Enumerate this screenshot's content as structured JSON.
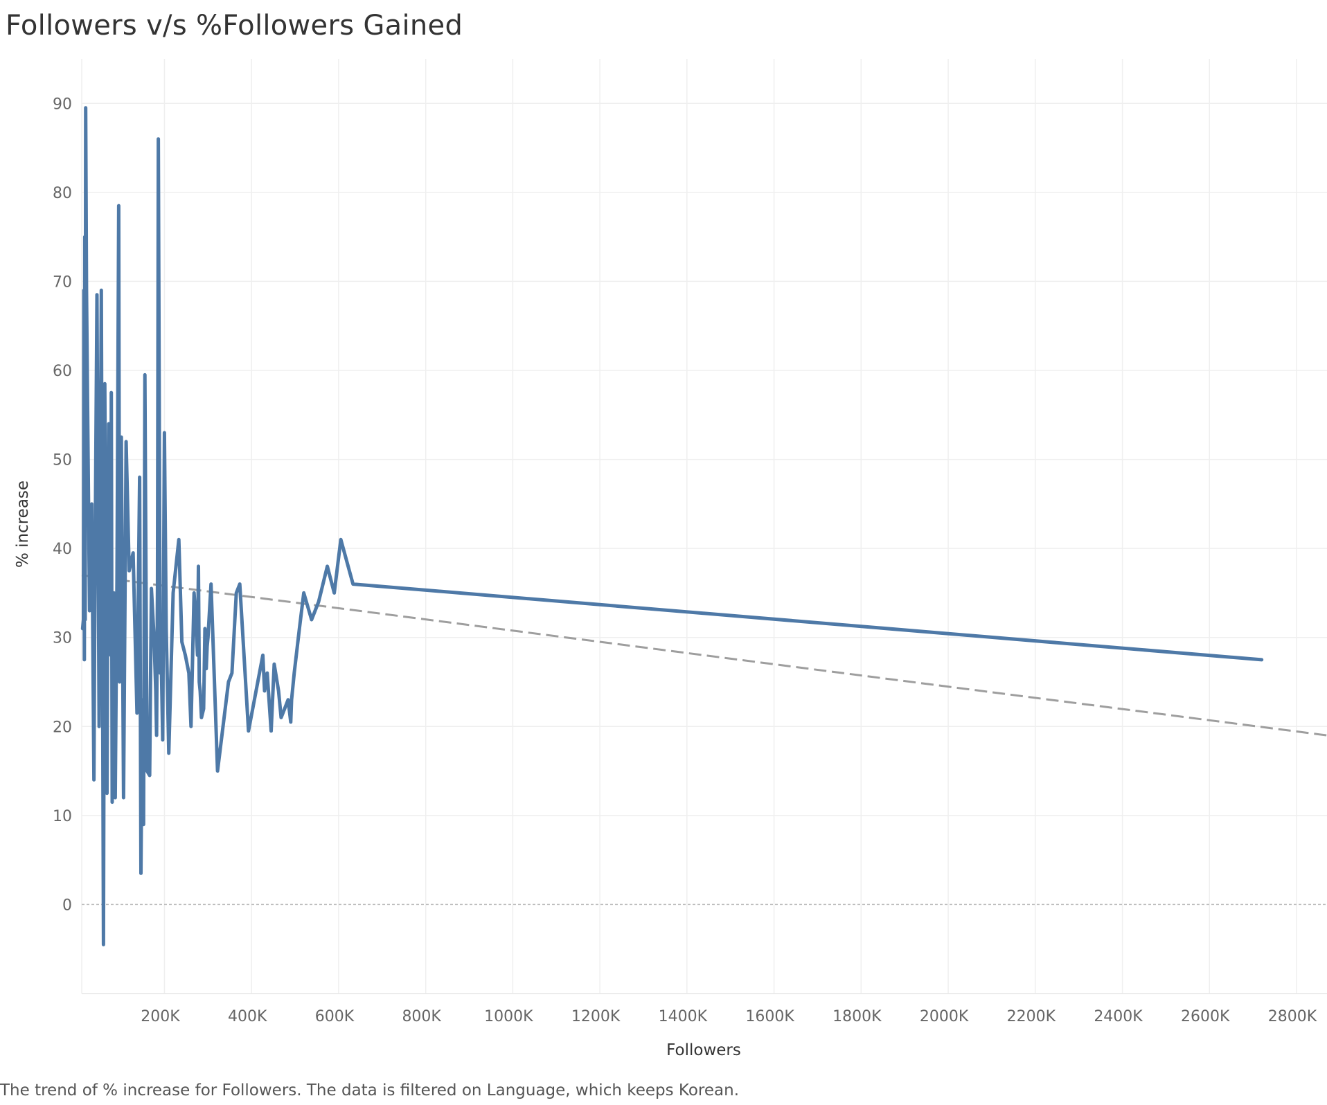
{
  "chart_data": {
    "type": "line",
    "title": "Followers v/s %Followers Gained",
    "caption": "The trend of % increase for Followers. The data is filtered on Language, which keeps Korean.",
    "xlabel": "Followers",
    "ylabel": "% increase",
    "xlim": [
      10000,
      2870000
    ],
    "ylim": [
      -10,
      95
    ],
    "x_ticks": [
      {
        "value": 200000,
        "label": "200K"
      },
      {
        "value": 400000,
        "label": "400K"
      },
      {
        "value": 600000,
        "label": "600K"
      },
      {
        "value": 800000,
        "label": "800K"
      },
      {
        "value": 1000000,
        "label": "1000K"
      },
      {
        "value": 1200000,
        "label": "1200K"
      },
      {
        "value": 1400000,
        "label": "1400K"
      },
      {
        "value": 1600000,
        "label": "1600K"
      },
      {
        "value": 1800000,
        "label": "1800K"
      },
      {
        "value": 2000000,
        "label": "2000K"
      },
      {
        "value": 2200000,
        "label": "2200K"
      },
      {
        "value": 2400000,
        "label": "2400K"
      },
      {
        "value": 2600000,
        "label": "2600K"
      },
      {
        "value": 2800000,
        "label": "2800K"
      }
    ],
    "y_ticks": [
      {
        "value": 0,
        "label": "0"
      },
      {
        "value": 10,
        "label": "10"
      },
      {
        "value": 20,
        "label": "20"
      },
      {
        "value": 30,
        "label": "30"
      },
      {
        "value": 40,
        "label": "40"
      },
      {
        "value": 50,
        "label": "50"
      },
      {
        "value": 60,
        "label": "60"
      },
      {
        "value": 70,
        "label": "70"
      },
      {
        "value": 80,
        "label": "80"
      },
      {
        "value": 90,
        "label": "90"
      }
    ],
    "grid": true,
    "colors": {
      "line": "#4e79a7",
      "trend": "#999999",
      "grid": "#efefef",
      "zero_line": "#bbbbbb"
    },
    "series": [
      {
        "x": [
          12000,
          14000,
          15000,
          16000,
          17000,
          18000,
          19000,
          21000,
          28000,
          33000,
          38000,
          40000,
          45000,
          50000,
          55000,
          60000,
          63000,
          68000,
          70000,
          72000,
          74000,
          75000,
          77000,
          78000,
          80000,
          84000,
          87000,
          91000,
          95000,
          97000,
          101000,
          106000,
          112000,
          119000,
          128000,
          137000,
          143000,
          146000,
          149000,
          152000,
          155000,
          160000,
          166000,
          170000,
          176000,
          180000,
          182000,
          184000,
          186000,
          188000,
          190000,
          192000,
          196000,
          200000,
          204000,
          210000,
          220000,
          233000,
          240000,
          248000,
          256000,
          261000,
          268000,
          272000,
          276000,
          278000,
          280000,
          282000,
          285000,
          290000,
          293000,
          295000,
          296000,
          298000,
          300000,
          307000,
          322000,
          347000,
          355000,
          365000,
          373000,
          393000,
          426000,
          430000,
          436000,
          445000,
          452000,
          462000,
          468000,
          476000,
          484000,
          490000,
          492000,
          498000,
          510000,
          520000,
          538000,
          554000,
          574000,
          590000,
          605000,
          633000,
          2720000
        ],
        "y": [
          31,
          32,
          69,
          27.5,
          75,
          32,
          89.5,
          69,
          33,
          45,
          14,
          34,
          68.5,
          20,
          69,
          -4.5,
          58.5,
          12.5,
          37,
          54,
          35,
          45.5,
          28,
          57.5,
          11.5,
          35,
          12,
          36.5,
          78.5,
          25,
          52.5,
          12,
          52,
          37.5,
          39.5,
          21.5,
          48,
          3.5,
          23,
          9,
          59.5,
          15,
          14.5,
          35.5,
          30,
          24,
          19,
          36,
          86,
          57,
          26,
          29.5,
          18.5,
          53,
          31,
          17,
          35,
          41,
          29.5,
          28,
          26,
          20,
          35,
          32,
          28,
          38,
          25,
          24,
          21,
          22,
          31,
          28,
          26.5,
          29,
          30,
          36,
          15,
          25,
          26,
          35,
          36,
          19.5,
          28,
          24,
          26,
          19.5,
          27,
          24,
          21,
          22,
          23,
          20.5,
          23,
          26,
          31,
          35,
          32,
          34,
          38,
          35,
          41,
          36,
          27.5
        ]
      }
    ],
    "trend_line": {
      "style": "dashed",
      "x": [
        10000,
        2870000
      ],
      "y": [
        37,
        19
      ]
    }
  }
}
